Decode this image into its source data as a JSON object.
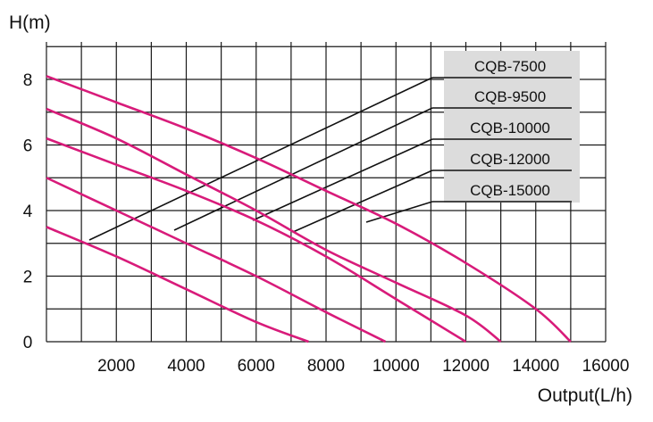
{
  "chart_data": {
    "type": "line",
    "title": "",
    "xlabel": "Output(L/h)",
    "ylabel": "H(m)",
    "xlim": [
      0,
      16000
    ],
    "ylim": [
      0,
      9
    ],
    "grid": true,
    "legend_placement": "top-right",
    "x_ticks": [
      "2000",
      "4000",
      "6000",
      "8000",
      "10000",
      "12000",
      "14000",
      "16000"
    ],
    "y_ticks": [
      "0",
      "2",
      "4",
      "6",
      "8"
    ],
    "line_color": "#d81b7a",
    "series": [
      {
        "name": "CQB-7500",
        "x": [
          0,
          2000,
          4000,
          6000,
          7500
        ],
        "y": [
          3.5,
          2.6,
          1.6,
          0.6,
          0
        ]
      },
      {
        "name": "CQB-9500",
        "x": [
          0,
          2000,
          4000,
          6000,
          8000,
          9700
        ],
        "y": [
          5.0,
          4.0,
          3.0,
          2.0,
          0.9,
          0
        ]
      },
      {
        "name": "CQB-10000",
        "x": [
          0,
          2000,
          4000,
          6000,
          8000,
          10000,
          12000
        ],
        "y": [
          6.2,
          5.4,
          4.6,
          3.7,
          2.6,
          1.3,
          0
        ]
      },
      {
        "name": "CQB-12000",
        "x": [
          0,
          2000,
          4000,
          6000,
          8000,
          10000,
          12000,
          13000
        ],
        "y": [
          7.1,
          6.2,
          5.1,
          4.0,
          2.8,
          1.8,
          0.8,
          0
        ]
      },
      {
        "name": "CQB-15000",
        "x": [
          0,
          2000,
          4000,
          6000,
          8000,
          10000,
          12000,
          14000,
          15000
        ],
        "y": [
          8.1,
          7.3,
          6.5,
          5.6,
          4.6,
          3.6,
          2.4,
          1.0,
          0
        ]
      }
    ]
  }
}
